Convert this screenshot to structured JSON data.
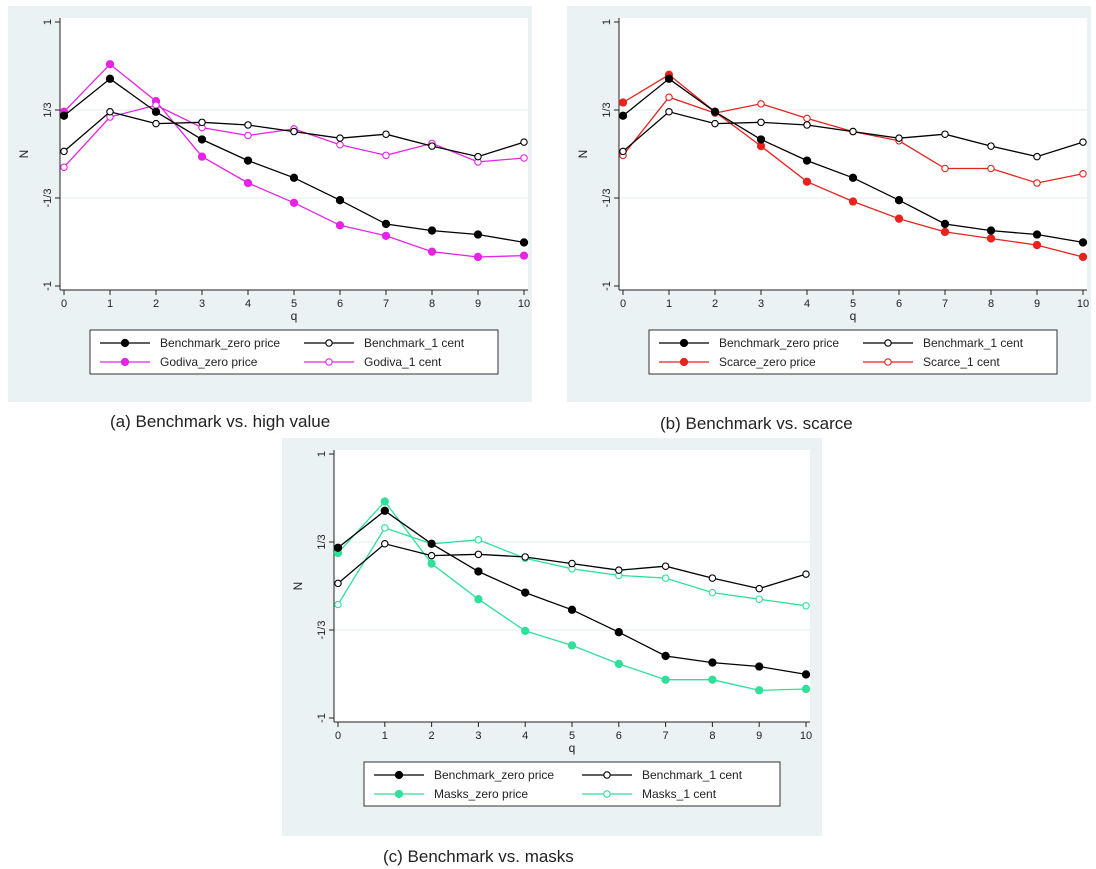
{
  "chart_data": [
    {
      "type": "line",
      "caption": "(a) Benchmark vs. high value",
      "xlabel": "q",
      "ylabel": "N",
      "xlim": [
        0,
        10
      ],
      "ylim": [
        -1,
        1
      ],
      "x_ticks": [
        "0",
        "1",
        "2",
        "3",
        "4",
        "5",
        "6",
        "7",
        "8",
        "9",
        "10"
      ],
      "y_ticks": [
        {
          "value": 1,
          "label": "1"
        },
        {
          "value": 0.3333,
          "label": "1/3"
        },
        {
          "value": -0.3333,
          "label": "-1/3"
        },
        {
          "value": -1,
          "label": "-1"
        }
      ],
      "grid": "horizontal at ±1/3",
      "legend_position": "bottom",
      "x": [
        0,
        1,
        2,
        3,
        4,
        5,
        6,
        7,
        8,
        9,
        10
      ],
      "series": [
        {
          "name": "Benchmark_zero price",
          "color": "#000000",
          "marker": "filled",
          "values": [
            0.29,
            0.57,
            0.32,
            0.11,
            -0.05,
            -0.18,
            -0.35,
            -0.53,
            -0.58,
            -0.61,
            -0.67
          ]
        },
        {
          "name": "Benchmark_1 cent",
          "color": "#000000",
          "marker": "hollow",
          "values": [
            0.02,
            0.32,
            0.23,
            0.24,
            0.22,
            0.17,
            0.12,
            0.15,
            0.06,
            -0.02,
            0.09
          ]
        },
        {
          "name": "Godiva_zero price",
          "color": "#e623e6",
          "marker": "filled",
          "values": [
            0.32,
            0.68,
            0.4,
            -0.02,
            -0.22,
            -0.37,
            -0.54,
            -0.62,
            -0.74,
            -0.78,
            -0.77
          ]
        },
        {
          "name": "Godiva_1 cent",
          "color": "#e623e6",
          "marker": "hollow",
          "values": [
            -0.1,
            0.28,
            0.37,
            0.2,
            0.14,
            0.19,
            0.07,
            -0.01,
            0.08,
            -0.06,
            -0.03
          ]
        }
      ]
    },
    {
      "type": "line",
      "caption": "(b) Benchmark vs. scarce",
      "xlabel": "q",
      "ylabel": "N",
      "xlim": [
        0,
        10
      ],
      "ylim": [
        -1,
        1
      ],
      "x_ticks": [
        "0",
        "1",
        "2",
        "3",
        "4",
        "5",
        "6",
        "7",
        "8",
        "9",
        "10"
      ],
      "y_ticks": [
        {
          "value": 1,
          "label": "1"
        },
        {
          "value": 0.3333,
          "label": "1/3"
        },
        {
          "value": -0.3333,
          "label": "-1/3"
        },
        {
          "value": -1,
          "label": "-1"
        }
      ],
      "grid": "horizontal at ±1/3",
      "legend_position": "bottom",
      "x": [
        0,
        1,
        2,
        3,
        4,
        5,
        6,
        7,
        8,
        9,
        10
      ],
      "series": [
        {
          "name": "Benchmark_zero price",
          "color": "#000000",
          "marker": "filled",
          "values": [
            0.29,
            0.57,
            0.32,
            0.11,
            -0.05,
            -0.18,
            -0.35,
            -0.53,
            -0.58,
            -0.61,
            -0.67
          ]
        },
        {
          "name": "Benchmark_1 cent",
          "color": "#000000",
          "marker": "hollow",
          "values": [
            0.02,
            0.32,
            0.23,
            0.24,
            0.22,
            0.17,
            0.12,
            0.15,
            0.06,
            -0.02,
            0.09
          ]
        },
        {
          "name": "Scarce_zero price",
          "color": "#e8231e",
          "marker": "filled",
          "values": [
            0.39,
            0.6,
            0.32,
            0.06,
            -0.21,
            -0.36,
            -0.49,
            -0.59,
            -0.64,
            -0.69,
            -0.78
          ]
        },
        {
          "name": "Scarce_1 cent",
          "color": "#e8231e",
          "marker": "hollow",
          "values": [
            -0.01,
            0.43,
            0.31,
            0.38,
            0.27,
            0.17,
            0.1,
            -0.11,
            -0.11,
            -0.22,
            -0.15
          ]
        }
      ]
    },
    {
      "type": "line",
      "caption": "(c) Benchmark vs. masks",
      "xlabel": "q",
      "ylabel": "N",
      "xlim": [
        0,
        10
      ],
      "ylim": [
        -1,
        1
      ],
      "x_ticks": [
        "0",
        "1",
        "2",
        "3",
        "4",
        "5",
        "6",
        "7",
        "8",
        "9",
        "10"
      ],
      "y_ticks": [
        {
          "value": 1,
          "label": "1"
        },
        {
          "value": 0.3333,
          "label": "1/3"
        },
        {
          "value": -0.3333,
          "label": "-1/3"
        },
        {
          "value": -1,
          "label": "-1"
        }
      ],
      "grid": "horizontal at ±1/3",
      "legend_position": "bottom",
      "x": [
        0,
        1,
        2,
        3,
        4,
        5,
        6,
        7,
        8,
        9,
        10
      ],
      "series": [
        {
          "name": "Benchmark_zero price",
          "color": "#000000",
          "marker": "filled",
          "values": [
            0.29,
            0.57,
            0.32,
            0.11,
            -0.05,
            -0.18,
            -0.35,
            -0.53,
            -0.58,
            -0.61,
            -0.67
          ]
        },
        {
          "name": "Benchmark_1 cent",
          "color": "#000000",
          "marker": "hollow",
          "values": [
            0.02,
            0.32,
            0.23,
            0.24,
            0.22,
            0.17,
            0.12,
            0.15,
            0.06,
            -0.02,
            0.09
          ]
        },
        {
          "name": "Masks_zero price",
          "color": "#2ee09a",
          "marker": "filled",
          "values": [
            0.25,
            0.64,
            0.17,
            -0.1,
            -0.34,
            -0.45,
            -0.59,
            -0.71,
            -0.71,
            -0.79,
            -0.78
          ]
        },
        {
          "name": "Masks_1 cent",
          "color": "#2ee09a",
          "marker": "hollow",
          "values": [
            -0.14,
            0.44,
            0.32,
            0.35,
            0.21,
            0.13,
            0.08,
            0.06,
            -0.05,
            -0.1,
            -0.15
          ]
        }
      ]
    }
  ]
}
